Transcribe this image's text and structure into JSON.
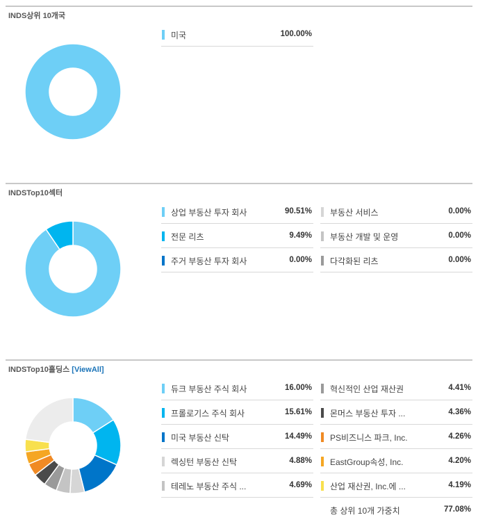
{
  "countries": {
    "title": "INDS상위 10개국",
    "rows": [
      {
        "label": "미국",
        "value": "100.00%",
        "color": "#6ecff6"
      }
    ]
  },
  "sectors": {
    "title": "INDSTop10섹터",
    "left_rows": [
      {
        "label": "상업 부동산 투자 회사",
        "value": "90.51%",
        "color": "#6ecff6"
      },
      {
        "label": "전문 리츠",
        "value": "9.49%",
        "color": "#00b5ef"
      },
      {
        "label": "주거 부동산 투자 회사",
        "value": "0.00%",
        "color": "#0075c9"
      }
    ],
    "right_rows": [
      {
        "label": "부동산 서비스",
        "value": "0.00%",
        "color": "#d6d6d6"
      },
      {
        "label": "부동산 개발 및 운영",
        "value": "0.00%",
        "color": "#c4c4c4"
      },
      {
        "label": "다각화된 리츠",
        "value": "0.00%",
        "color": "#9a9a9a"
      }
    ]
  },
  "holdings": {
    "title": "INDSTop10홀딩스",
    "view_all": "[ViewAll]",
    "left_rows": [
      {
        "label": "듀크 부동산 주식 회사",
        "value": "16.00%",
        "color": "#6ecff6"
      },
      {
        "label": "프롤로기스 주식 회사",
        "value": "15.61%",
        "color": "#00b5ef"
      },
      {
        "label": "미국 부동산 신탁",
        "value": "14.49%",
        "color": "#0075c9"
      },
      {
        "label": "렉싱턴 부동산 신탁",
        "value": "4.88%",
        "color": "#d6d6d6"
      },
      {
        "label": "테레노 부동산 주식 ...",
        "value": "4.69%",
        "color": "#c4c4c4"
      }
    ],
    "right_rows": [
      {
        "label": "혁신적인 산업 재산권",
        "value": "4.41%",
        "color": "#9a9a9a"
      },
      {
        "label": "몬머스 부동산 투자 ...",
        "value": "4.36%",
        "color": "#4a4a4a"
      },
      {
        "label": "PS비즈니스 파크, Inc.",
        "value": "4.26%",
        "color": "#f08a24"
      },
      {
        "label": "EastGroup속성, Inc.",
        "value": "4.20%",
        "color": "#f5a623"
      },
      {
        "label": "산업 재산권, Inc.에 ...",
        "value": "4.19%",
        "color": "#f8e04e"
      }
    ],
    "total_label": "총 상위 10개 가중치",
    "total_value": "77.08%",
    "other_color": "#ececec"
  },
  "chart_data": [
    {
      "type": "pie",
      "categories": [
        "미국"
      ],
      "values": [
        100.0
      ]
    },
    {
      "type": "pie",
      "categories": [
        "상업 부동산 투자 회사",
        "전문 리츠",
        "주거 부동산 투자 회사",
        "부동산 서비스",
        "부동산 개발 및 운영",
        "다각화된 리츠"
      ],
      "values": [
        90.51,
        9.49,
        0.0,
        0.0,
        0.0,
        0.0
      ]
    },
    {
      "type": "pie",
      "categories": [
        "듀크 부동산 주식 회사",
        "프롤로기스 주식 회사",
        "미국 부동산 신탁",
        "렉싱턴 부동산 신탁",
        "테레노 부동산 주식 ...",
        "혁신적인 산업 재산권",
        "몬머스 부동산 투자 ...",
        "PS비즈니스 파크, Inc.",
        "EastGroup속성, Inc.",
        "산업 재산권, Inc.에 ..."
      ],
      "values": [
        16.0,
        15.61,
        14.49,
        4.88,
        4.69,
        4.41,
        4.36,
        4.26,
        4.2,
        4.19
      ]
    }
  ]
}
